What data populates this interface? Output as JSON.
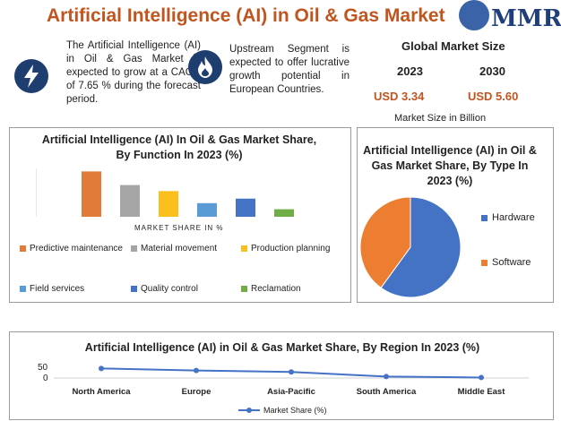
{
  "header": {
    "title": "Artificial Intelligence (AI) in Oil & Gas Market",
    "logo_text": "MMR"
  },
  "info_cards": [
    {
      "icon": "lightning-bolt-icon",
      "text": "The Artificial Intelligence (AI) in Oil & Gas Market is expected to grow at a CAGR of 7.65 % during the forecast period."
    },
    {
      "icon": "flame-icon",
      "text": "Upstream Segment is expected to offer lucrative growth potential in European Countries."
    }
  ],
  "market_size": {
    "title": "Global Market Size",
    "years": [
      "2023",
      "2030"
    ],
    "values": [
      "USD 3.34",
      "USD 5.60"
    ],
    "unit": "Market Size in Billion"
  },
  "colors": {
    "accent": "#c0551f",
    "navy": "#1f3e70",
    "series": [
      "#e07b39",
      "#a5a5a5",
      "#fbc01e",
      "#5b9bd5",
      "#4472c4",
      "#70ad47"
    ]
  },
  "chart_data": [
    {
      "type": "bar",
      "title": "Artificial Intelligence (AI) In Oil & Gas Market Share, By Function In 2023 (%)",
      "xlabel": "MARKET SHARE IN %",
      "categories": [
        "Predictive maintenance",
        "Material movement",
        "Production planning",
        "Field services",
        "Quality control",
        "Reclamation"
      ],
      "values": [
        30,
        21,
        17,
        9,
        12,
        5
      ],
      "ylim": [
        0,
        32
      ],
      "legend": "bottom",
      "grid": false
    },
    {
      "type": "pie",
      "title": "Artificial Intelligence (AI) in Oil & Gas Market Share, By Type In 2023 (%)",
      "categories": [
        "Hardware",
        "Software"
      ],
      "values": [
        60,
        40
      ],
      "legend": "right"
    },
    {
      "type": "line",
      "title": "Artificial Intelligence (AI) in Oil & Gas Market Share, By Region In 2023 (%)",
      "categories": [
        "North America",
        "Europe",
        "Asia-Pacific",
        "South America",
        "Middle East"
      ],
      "series": [
        {
          "name": "Market Share (%)",
          "values": [
            38,
            30,
            24,
            6,
            2
          ]
        }
      ],
      "yticks": [
        "50",
        "0"
      ],
      "ylim": [
        0,
        50
      ],
      "legend": "bottom",
      "grid": false
    }
  ]
}
